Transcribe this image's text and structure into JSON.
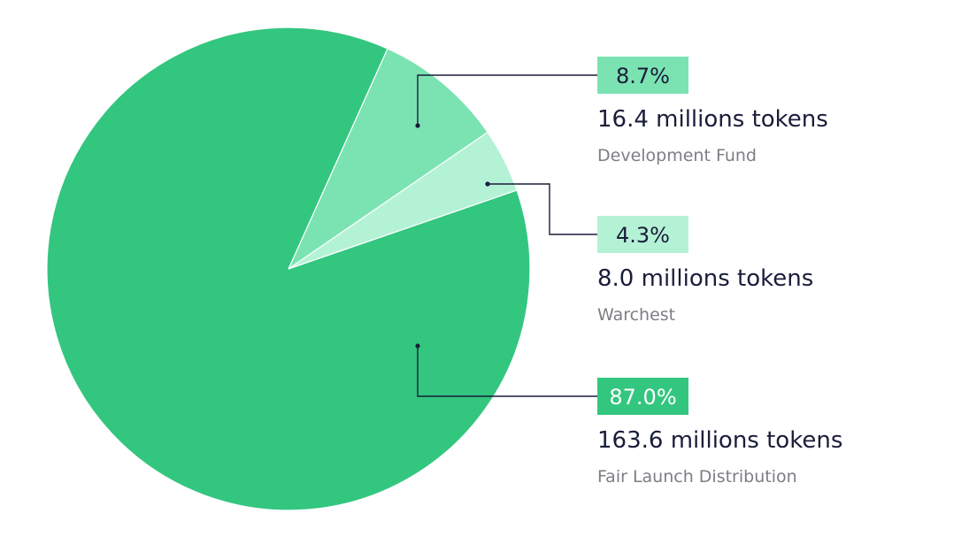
{
  "chart_data": {
    "type": "pie",
    "series": [
      {
        "percent_label": "8.7%",
        "tokens_label": "16.4 millions tokens",
        "name": "Development Fund",
        "value": 16.4,
        "percent": 8.7,
        "color": "#7be3b2",
        "label_fill": "#7be3b2",
        "label_text_color": "#1a1d3a"
      },
      {
        "percent_label": "4.3%",
        "tokens_label": "8.0 millions tokens",
        "name": "Warchest",
        "value": 8.0,
        "percent": 4.3,
        "color": "#b4f2d6",
        "label_fill": "#b4f2d6",
        "label_text_color": "#1a1d3a"
      },
      {
        "percent_label": "87.0%",
        "tokens_label": "163.6 millions tokens",
        "name": "Fair Launch Distribution",
        "value": 163.6,
        "percent": 87.0,
        "color": "#33c67f",
        "label_fill": "#33c67f",
        "label_text_color": "#ffffff"
      }
    ],
    "legend_position": "right",
    "colors": {
      "tokens_text": "#1a1d3a",
      "name_text": "#7d7e84",
      "leader_line": "#1a1d3a"
    }
  }
}
